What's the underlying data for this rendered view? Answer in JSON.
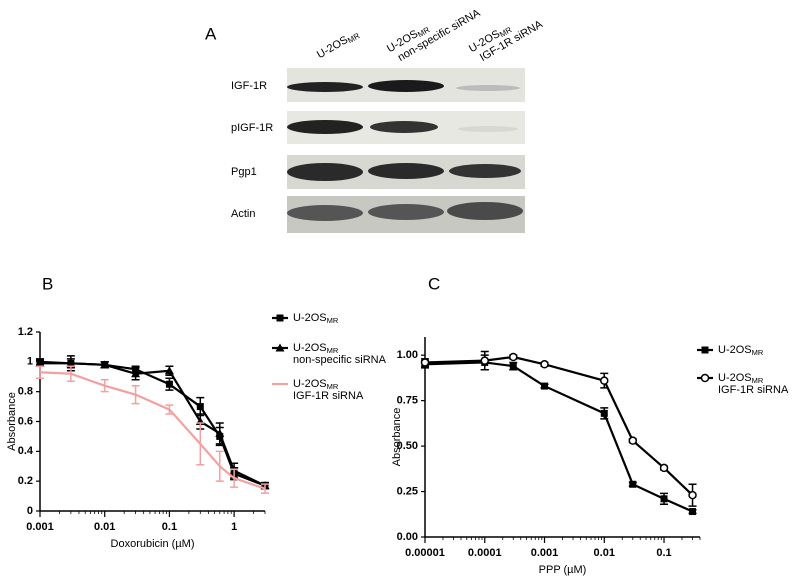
{
  "blot": {
    "panel_label": "A",
    "columns": [
      {
        "main": "U-2OS",
        "sub": "MR"
      },
      {
        "main": "U-2OS",
        "sub": "MR",
        "note": "non-specific siRNA"
      },
      {
        "main": "U-2OS",
        "sub": "MR",
        "note": "IGF-1R siRNA"
      }
    ],
    "rows": [
      "IGF-1R",
      "pIGF-1R",
      "Pgp1",
      "Actin"
    ]
  },
  "chart_data": [
    {
      "type": "line",
      "panel_label": "B",
      "x_label": "Doxorubicin (µM)",
      "y_label": "Absorbance",
      "log_x": true,
      "x": [
        0.001,
        0.003,
        0.01,
        0.03,
        0.1,
        0.3,
        0.6,
        1,
        3
      ],
      "xlim": [
        0.001,
        3
      ],
      "xticks": [
        0.001,
        0.01,
        0.1,
        1
      ],
      "ylim": [
        0,
        1.2
      ],
      "yticks": [
        0,
        0.2,
        0.4,
        0.6,
        0.8,
        1,
        1.2
      ],
      "series": [
        {
          "name": "U-2OS",
          "name_sub": "MR",
          "color": "#000000",
          "marker": "square",
          "values": [
            1.0,
            0.99,
            0.98,
            0.95,
            0.85,
            0.7,
            0.5,
            0.25,
            0.17
          ],
          "errors": [
            0.02,
            0.03,
            0.02,
            0.02,
            0.04,
            0.06,
            0.06,
            0.04,
            0.02
          ]
        },
        {
          "name": "U-2OS",
          "name_sub": "MR",
          "name_note": "non-specific siRNA",
          "color": "#000000",
          "marker": "triangle",
          "values": [
            0.99,
            0.99,
            0.98,
            0.92,
            0.94,
            0.6,
            0.52,
            0.27,
            0.17
          ],
          "errors": [
            0.02,
            0.05,
            0.02,
            0.04,
            0.03,
            0.05,
            0.07,
            0.05,
            0.02
          ]
        },
        {
          "name": "U-2OS",
          "name_sub": "MR",
          "name_note": "IGF-1R siRNA",
          "color": "#f4a0a0",
          "marker": "none",
          "values": [
            0.93,
            0.92,
            0.84,
            0.78,
            0.68,
            0.45,
            0.3,
            0.22,
            0.15
          ],
          "errors": [
            0.04,
            0.05,
            0.04,
            0.06,
            0.03,
            0.14,
            0.1,
            0.06,
            0.03
          ]
        }
      ]
    },
    {
      "type": "line",
      "panel_label": "C",
      "x_label": "PPP (µM)",
      "y_label": "Absorbance",
      "log_x": true,
      "x": [
        1e-05,
        0.0001,
        0.0003,
        0.001,
        0.01,
        0.03,
        0.1,
        0.3
      ],
      "xlim": [
        1e-05,
        0.4
      ],
      "xticks": [
        1e-05,
        0.0001,
        0.001,
        0.01,
        0.1
      ],
      "ylim": [
        0,
        1.1
      ],
      "yticks": [
        {
          "value": 0,
          "label": "0.00"
        },
        {
          "value": 0.25,
          "label": "0.25"
        },
        {
          "value": 0.5,
          "label": "0.50"
        },
        {
          "value": 0.75,
          "label": "0.75"
        },
        {
          "value": 1,
          "label": "1.00"
        }
      ],
      "series": [
        {
          "name": "U-2OS",
          "name_sub": "MR",
          "color": "#000000",
          "marker": "square",
          "values": [
            0.95,
            0.96,
            0.94,
            0.83,
            0.68,
            0.29,
            0.21,
            0.14
          ],
          "errors": [
            0.02,
            0.04,
            0.02,
            0.01,
            0.03,
            0.01,
            0.03,
            0.01
          ]
        },
        {
          "name": "U-2OS",
          "name_sub": "MR",
          "name_note": "IGF-1R siRNA",
          "color": "#000000",
          "marker": "circle-open",
          "values": [
            0.96,
            0.97,
            0.99,
            0.95,
            0.86,
            0.53,
            0.38,
            0.23
          ],
          "errors": [
            0.02,
            0.05,
            0.01,
            0.01,
            0.04,
            0.01,
            0.01,
            0.06
          ]
        }
      ]
    }
  ]
}
